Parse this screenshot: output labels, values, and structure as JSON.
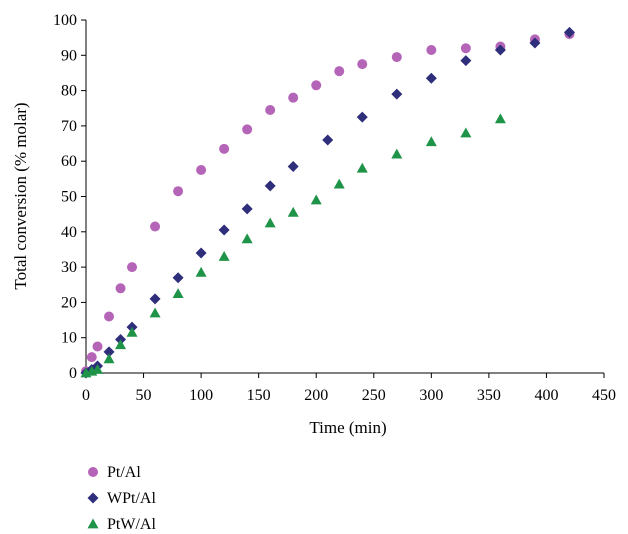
{
  "chart_data": {
    "type": "scatter",
    "xlabel": "Time (min)",
    "ylabel": "Total conversion (% molar)",
    "xlim": [
      0,
      450
    ],
    "ylim": [
      0,
      100
    ],
    "xticks": [
      0,
      50,
      100,
      150,
      200,
      250,
      300,
      350,
      400,
      450
    ],
    "yticks": [
      0,
      10,
      20,
      30,
      40,
      50,
      60,
      70,
      80,
      90,
      100
    ],
    "grid": false,
    "legend_position": "bottom-left",
    "series": [
      {
        "name": "Pt/Al",
        "marker": "circle",
        "color": "#b565b8",
        "x": [
          0,
          5,
          10,
          20,
          30,
          40,
          60,
          80,
          100,
          120,
          140,
          160,
          180,
          200,
          220,
          240,
          270,
          300,
          330,
          360,
          390,
          420
        ],
        "y": [
          0.5,
          4.5,
          7.5,
          16,
          24,
          30,
          41.5,
          51.5,
          57.5,
          63.5,
          69,
          74.5,
          78,
          81.5,
          85.5,
          87.5,
          89.5,
          91.5,
          92,
          92.5,
          94.5,
          96
        ]
      },
      {
        "name": "WPt/Al",
        "marker": "diamond",
        "color": "#2e2e7a",
        "x": [
          0,
          5,
          10,
          20,
          30,
          40,
          60,
          80,
          100,
          120,
          140,
          160,
          180,
          210,
          240,
          270,
          300,
          330,
          360,
          390,
          420
        ],
        "y": [
          0,
          1,
          2,
          6,
          9.5,
          13,
          21,
          27,
          34,
          40.5,
          46.5,
          53,
          58.5,
          66,
          72.5,
          79,
          83.5,
          88.5,
          91.5,
          93.5,
          96.5
        ]
      },
      {
        "name": "PtW/Al",
        "marker": "triangle",
        "color": "#1f9448",
        "x": [
          0,
          5,
          10,
          20,
          30,
          40,
          60,
          80,
          100,
          120,
          140,
          160,
          180,
          200,
          220,
          240,
          270,
          300,
          330,
          360
        ],
        "y": [
          0,
          0.5,
          1,
          4,
          8,
          11.5,
          17,
          22.5,
          28.5,
          33,
          38,
          42.5,
          45.5,
          49,
          53.5,
          58,
          62,
          65.5,
          68,
          72
        ]
      }
    ]
  }
}
